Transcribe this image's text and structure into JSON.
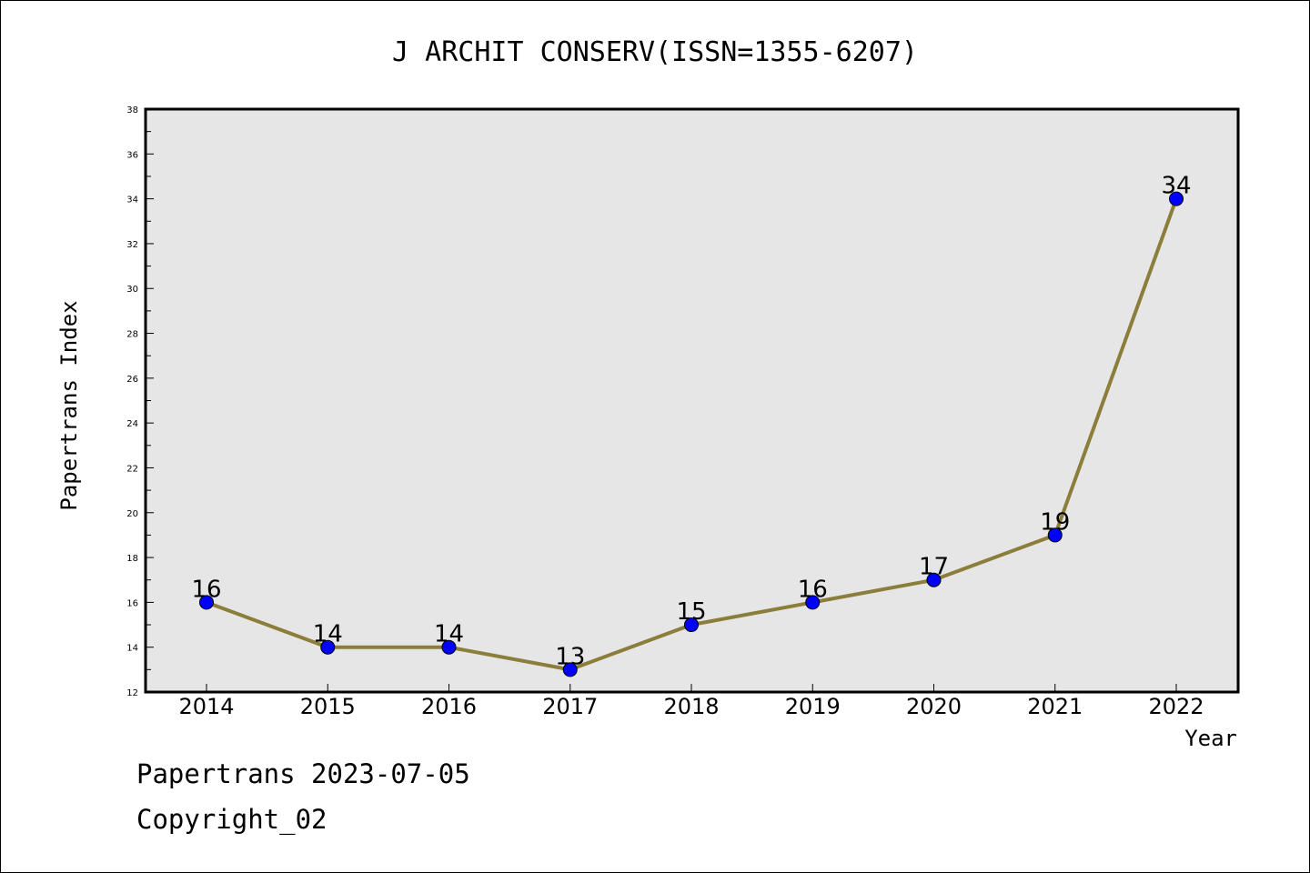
{
  "chart_data": {
    "type": "line",
    "title": "J ARCHIT CONSERV(ISSN=1355-6207)",
    "xlabel": "Year",
    "ylabel": "Papertrans Index",
    "categories": [
      "2014",
      "2015",
      "2016",
      "2017",
      "2018",
      "2019",
      "2020",
      "2021",
      "2022"
    ],
    "series": [
      {
        "values": [
          16,
          14,
          14,
          13,
          15,
          16,
          17,
          19,
          34
        ]
      }
    ],
    "ylim": [
      12,
      38
    ],
    "yticks": [
      12,
      14,
      16,
      18,
      20,
      22,
      24,
      26,
      28,
      30,
      32,
      34,
      36,
      38
    ],
    "grid": false,
    "line_color": "#8b7d3a",
    "marker_color": "#0000ff",
    "plot_background": "#e6e6e6"
  },
  "footer": {
    "line1": "Papertrans 2023-07-05",
    "line2": "Copyright_02"
  }
}
